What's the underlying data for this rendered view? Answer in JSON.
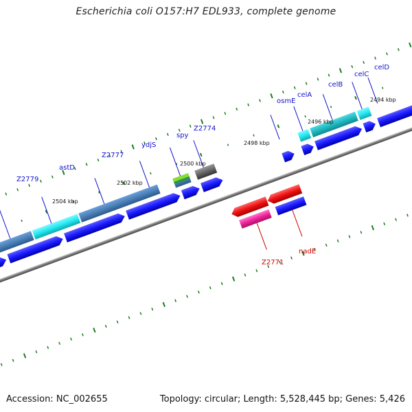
{
  "title": "Escherichia coli O157:H7 EDL933, complete genome",
  "footer": {
    "accession": "Accession: NC_002655",
    "summary": "Topology: circular; Length: 5,528,445 bp; Genes: 5,426"
  },
  "kbp_labels": [
    "2504 kbp",
    "2502 kbp",
    "2500 kbp",
    "2498 kbp",
    "2496 kbp",
    "2494 kbp"
  ],
  "forward_labels": [
    "Z2779",
    "astD",
    "Z2777",
    "ydjS",
    "spy",
    "Z2774",
    "osmE",
    "celA",
    "celB",
    "celC",
    "celD"
  ],
  "reverse_labels": [
    "Z2771",
    "nadE"
  ],
  "colors": {
    "cds": "#1a1aff",
    "steelblue": "#4a7fb8",
    "cyan": "#22e8f0",
    "teal": "#20b8c0",
    "gray": "#666666",
    "red": "#ee1111",
    "pink": "#ee2299",
    "green_tick": "#1a7a1a",
    "label_blue": "#1010cc",
    "label_red": "#cc0000"
  }
}
